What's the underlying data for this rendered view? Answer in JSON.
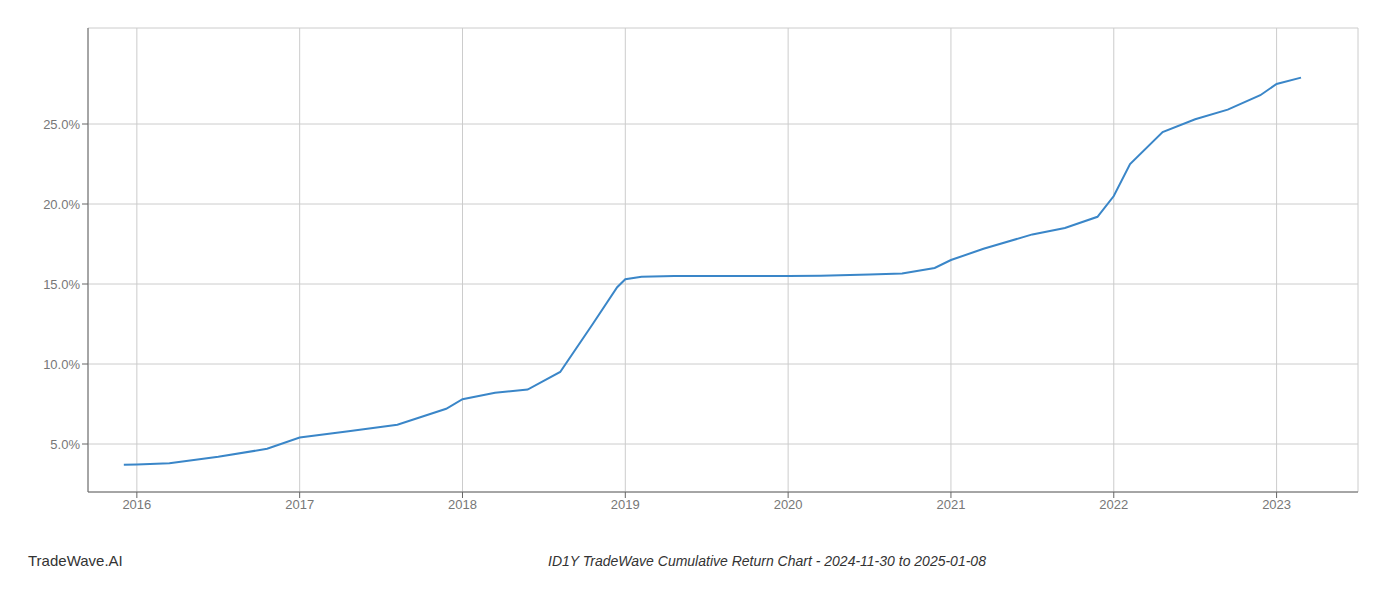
{
  "chart_data": {
    "type": "line",
    "title": "ID1Y TradeWave Cumulative Return Chart - 2024-11-30 to 2025-01-08",
    "annotations": [
      "TradeWave.AI"
    ],
    "x": [
      2015.92,
      2016.0,
      2016.2,
      2016.5,
      2016.8,
      2017.0,
      2017.3,
      2017.6,
      2017.9,
      2018.0,
      2018.2,
      2018.4,
      2018.6,
      2018.8,
      2018.95,
      2019.0,
      2019.1,
      2019.3,
      2019.5,
      2019.7,
      2019.9,
      2020.0,
      2020.2,
      2020.5,
      2020.7,
      2020.9,
      2021.0,
      2021.2,
      2021.5,
      2021.7,
      2021.9,
      2022.0,
      2022.1,
      2022.3,
      2022.5,
      2022.7,
      2022.9,
      2023.0,
      2023.15
    ],
    "values": [
      3.7,
      3.72,
      3.8,
      4.2,
      4.7,
      5.4,
      5.8,
      6.2,
      7.2,
      7.8,
      8.2,
      8.4,
      9.5,
      12.5,
      14.8,
      15.3,
      15.45,
      15.5,
      15.5,
      15.5,
      15.5,
      15.5,
      15.52,
      15.6,
      15.65,
      16.0,
      16.5,
      17.2,
      18.1,
      18.5,
      19.2,
      20.5,
      22.5,
      24.5,
      25.3,
      25.9,
      26.8,
      27.5,
      27.9
    ],
    "color": "#3a86c8",
    "xlim": [
      2015.7,
      2023.5
    ],
    "ylim": [
      2.0,
      31.0
    ],
    "xticks": [
      2016,
      2017,
      2018,
      2019,
      2020,
      2021,
      2022,
      2023
    ],
    "yticks": [
      {
        "value": 5.0,
        "label": "5.0%"
      },
      {
        "value": 10.0,
        "label": "10.0%"
      },
      {
        "value": 15.0,
        "label": "15.0%"
      },
      {
        "value": 20.0,
        "label": "20.0%"
      },
      {
        "value": 25.0,
        "label": "25.0%"
      }
    ],
    "grid": true
  }
}
